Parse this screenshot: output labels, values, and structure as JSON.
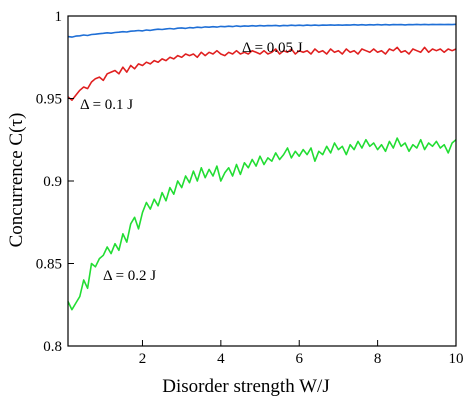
{
  "chart_data": {
    "type": "line",
    "xlabel": "Disorder strength W/J",
    "ylabel": "Concurrence C(τ)",
    "xlim": [
      0.1,
      10
    ],
    "ylim": [
      0.8,
      1.0
    ],
    "xticks": [
      2,
      4,
      6,
      8,
      10
    ],
    "yticks": [
      0.8,
      0.85,
      0.9,
      0.95,
      1
    ],
    "ytick_labels": [
      "0.8",
      "0.85",
      "0.9",
      "0.95",
      "1"
    ],
    "grid": false,
    "legend": "none",
    "x": [
      0.1,
      0.2,
      0.3,
      0.4,
      0.5,
      0.6,
      0.7,
      0.8,
      0.9,
      1.0,
      1.1,
      1.2,
      1.3,
      1.4,
      1.5,
      1.6,
      1.7,
      1.8,
      1.9,
      2.0,
      2.1,
      2.2,
      2.3,
      2.4,
      2.5,
      2.6,
      2.7,
      2.8,
      2.9,
      3.0,
      3.1,
      3.2,
      3.3,
      3.4,
      3.5,
      3.6,
      3.7,
      3.8,
      3.9,
      4.0,
      4.1,
      4.2,
      4.3,
      4.4,
      4.5,
      4.6,
      4.7,
      4.8,
      4.9,
      5.0,
      5.1,
      5.2,
      5.3,
      5.4,
      5.5,
      5.6,
      5.7,
      5.8,
      5.9,
      6.0,
      6.1,
      6.2,
      6.3,
      6.4,
      6.5,
      6.6,
      6.7,
      6.8,
      6.9,
      7.0,
      7.1,
      7.2,
      7.3,
      7.4,
      7.5,
      7.6,
      7.7,
      7.8,
      7.9,
      8.0,
      8.1,
      8.2,
      8.3,
      8.4,
      8.5,
      8.6,
      8.7,
      8.8,
      8.9,
      9.0,
      9.1,
      9.2,
      9.3,
      9.4,
      9.5,
      9.6,
      9.7,
      9.8,
      9.9,
      10.0
    ],
    "series": [
      {
        "name": "Δ = 0.05 J",
        "color": "#1f6fd6",
        "values": [
          0.9875,
          0.9872,
          0.9878,
          0.988,
          0.9885,
          0.9882,
          0.9888,
          0.989,
          0.9893,
          0.9895,
          0.9898,
          0.9896,
          0.99,
          0.9902,
          0.9905,
          0.9903,
          0.9908,
          0.991,
          0.9912,
          0.991,
          0.9915,
          0.9913,
          0.9917,
          0.992,
          0.9918,
          0.9922,
          0.9924,
          0.9921,
          0.9926,
          0.9928,
          0.9925,
          0.993,
          0.9928,
          0.9932,
          0.993,
          0.9934,
          0.9932,
          0.9935,
          0.9933,
          0.9937,
          0.9935,
          0.9938,
          0.9936,
          0.994,
          0.9937,
          0.994,
          0.9938,
          0.9941,
          0.9939,
          0.9942,
          0.994,
          0.9942,
          0.9941,
          0.9943,
          0.994,
          0.9943,
          0.9941,
          0.9944,
          0.9942,
          0.9944,
          0.9942,
          0.9945,
          0.9943,
          0.9945,
          0.9943,
          0.9945,
          0.9944,
          0.9946,
          0.9944,
          0.9946,
          0.9944,
          0.9946,
          0.9945,
          0.9947,
          0.9945,
          0.9947,
          0.9945,
          0.9947,
          0.9946,
          0.9948,
          0.9946,
          0.9948,
          0.9946,
          0.9948,
          0.9947,
          0.9948,
          0.9946,
          0.9948,
          0.9947,
          0.9949,
          0.9947,
          0.9949,
          0.9947,
          0.9949,
          0.9948,
          0.9949,
          0.9948,
          0.9949,
          0.9948,
          0.995
        ]
      },
      {
        "name": "Δ = 0.1 J",
        "color": "#e02020",
        "values": [
          0.951,
          0.949,
          0.952,
          0.955,
          0.957,
          0.956,
          0.96,
          0.962,
          0.963,
          0.961,
          0.965,
          0.966,
          0.967,
          0.965,
          0.969,
          0.966,
          0.97,
          0.968,
          0.971,
          0.97,
          0.972,
          0.971,
          0.973,
          0.972,
          0.974,
          0.973,
          0.975,
          0.974,
          0.976,
          0.975,
          0.977,
          0.976,
          0.977,
          0.975,
          0.978,
          0.976,
          0.978,
          0.977,
          0.979,
          0.977,
          0.976,
          0.978,
          0.977,
          0.979,
          0.977,
          0.978,
          0.977,
          0.979,
          0.978,
          0.977,
          0.979,
          0.977,
          0.978,
          0.98,
          0.977,
          0.979,
          0.978,
          0.98,
          0.977,
          0.979,
          0.978,
          0.979,
          0.977,
          0.98,
          0.978,
          0.979,
          0.977,
          0.98,
          0.978,
          0.979,
          0.977,
          0.98,
          0.978,
          0.979,
          0.977,
          0.98,
          0.979,
          0.978,
          0.98,
          0.978,
          0.979,
          0.977,
          0.98,
          0.979,
          0.981,
          0.978,
          0.979,
          0.977,
          0.98,
          0.979,
          0.978,
          0.981,
          0.978,
          0.98,
          0.979,
          0.98,
          0.978,
          0.98,
          0.979,
          0.98
        ]
      },
      {
        "name": "Δ = 0.2 J",
        "color": "#22dd33",
        "values": [
          0.827,
          0.822,
          0.826,
          0.83,
          0.84,
          0.835,
          0.85,
          0.848,
          0.853,
          0.855,
          0.86,
          0.856,
          0.862,
          0.858,
          0.868,
          0.863,
          0.874,
          0.878,
          0.871,
          0.881,
          0.887,
          0.883,
          0.889,
          0.885,
          0.893,
          0.888,
          0.896,
          0.892,
          0.9,
          0.896,
          0.903,
          0.899,
          0.906,
          0.9,
          0.908,
          0.902,
          0.907,
          0.903,
          0.909,
          0.9,
          0.905,
          0.908,
          0.903,
          0.91,
          0.904,
          0.911,
          0.908,
          0.913,
          0.909,
          0.915,
          0.91,
          0.914,
          0.912,
          0.917,
          0.913,
          0.916,
          0.92,
          0.914,
          0.918,
          0.915,
          0.919,
          0.916,
          0.92,
          0.912,
          0.918,
          0.916,
          0.921,
          0.917,
          0.923,
          0.919,
          0.921,
          0.916,
          0.922,
          0.919,
          0.924,
          0.92,
          0.925,
          0.921,
          0.923,
          0.919,
          0.922,
          0.918,
          0.924,
          0.92,
          0.926,
          0.921,
          0.923,
          0.918,
          0.922,
          0.92,
          0.925,
          0.919,
          0.923,
          0.921,
          0.924,
          0.92,
          0.922,
          0.917,
          0.923,
          0.925
        ]
      }
    ],
    "annotations": [
      "Δ = 0.05 J",
      "Δ = 0.1 J",
      "Δ = 0.2 J"
    ]
  }
}
